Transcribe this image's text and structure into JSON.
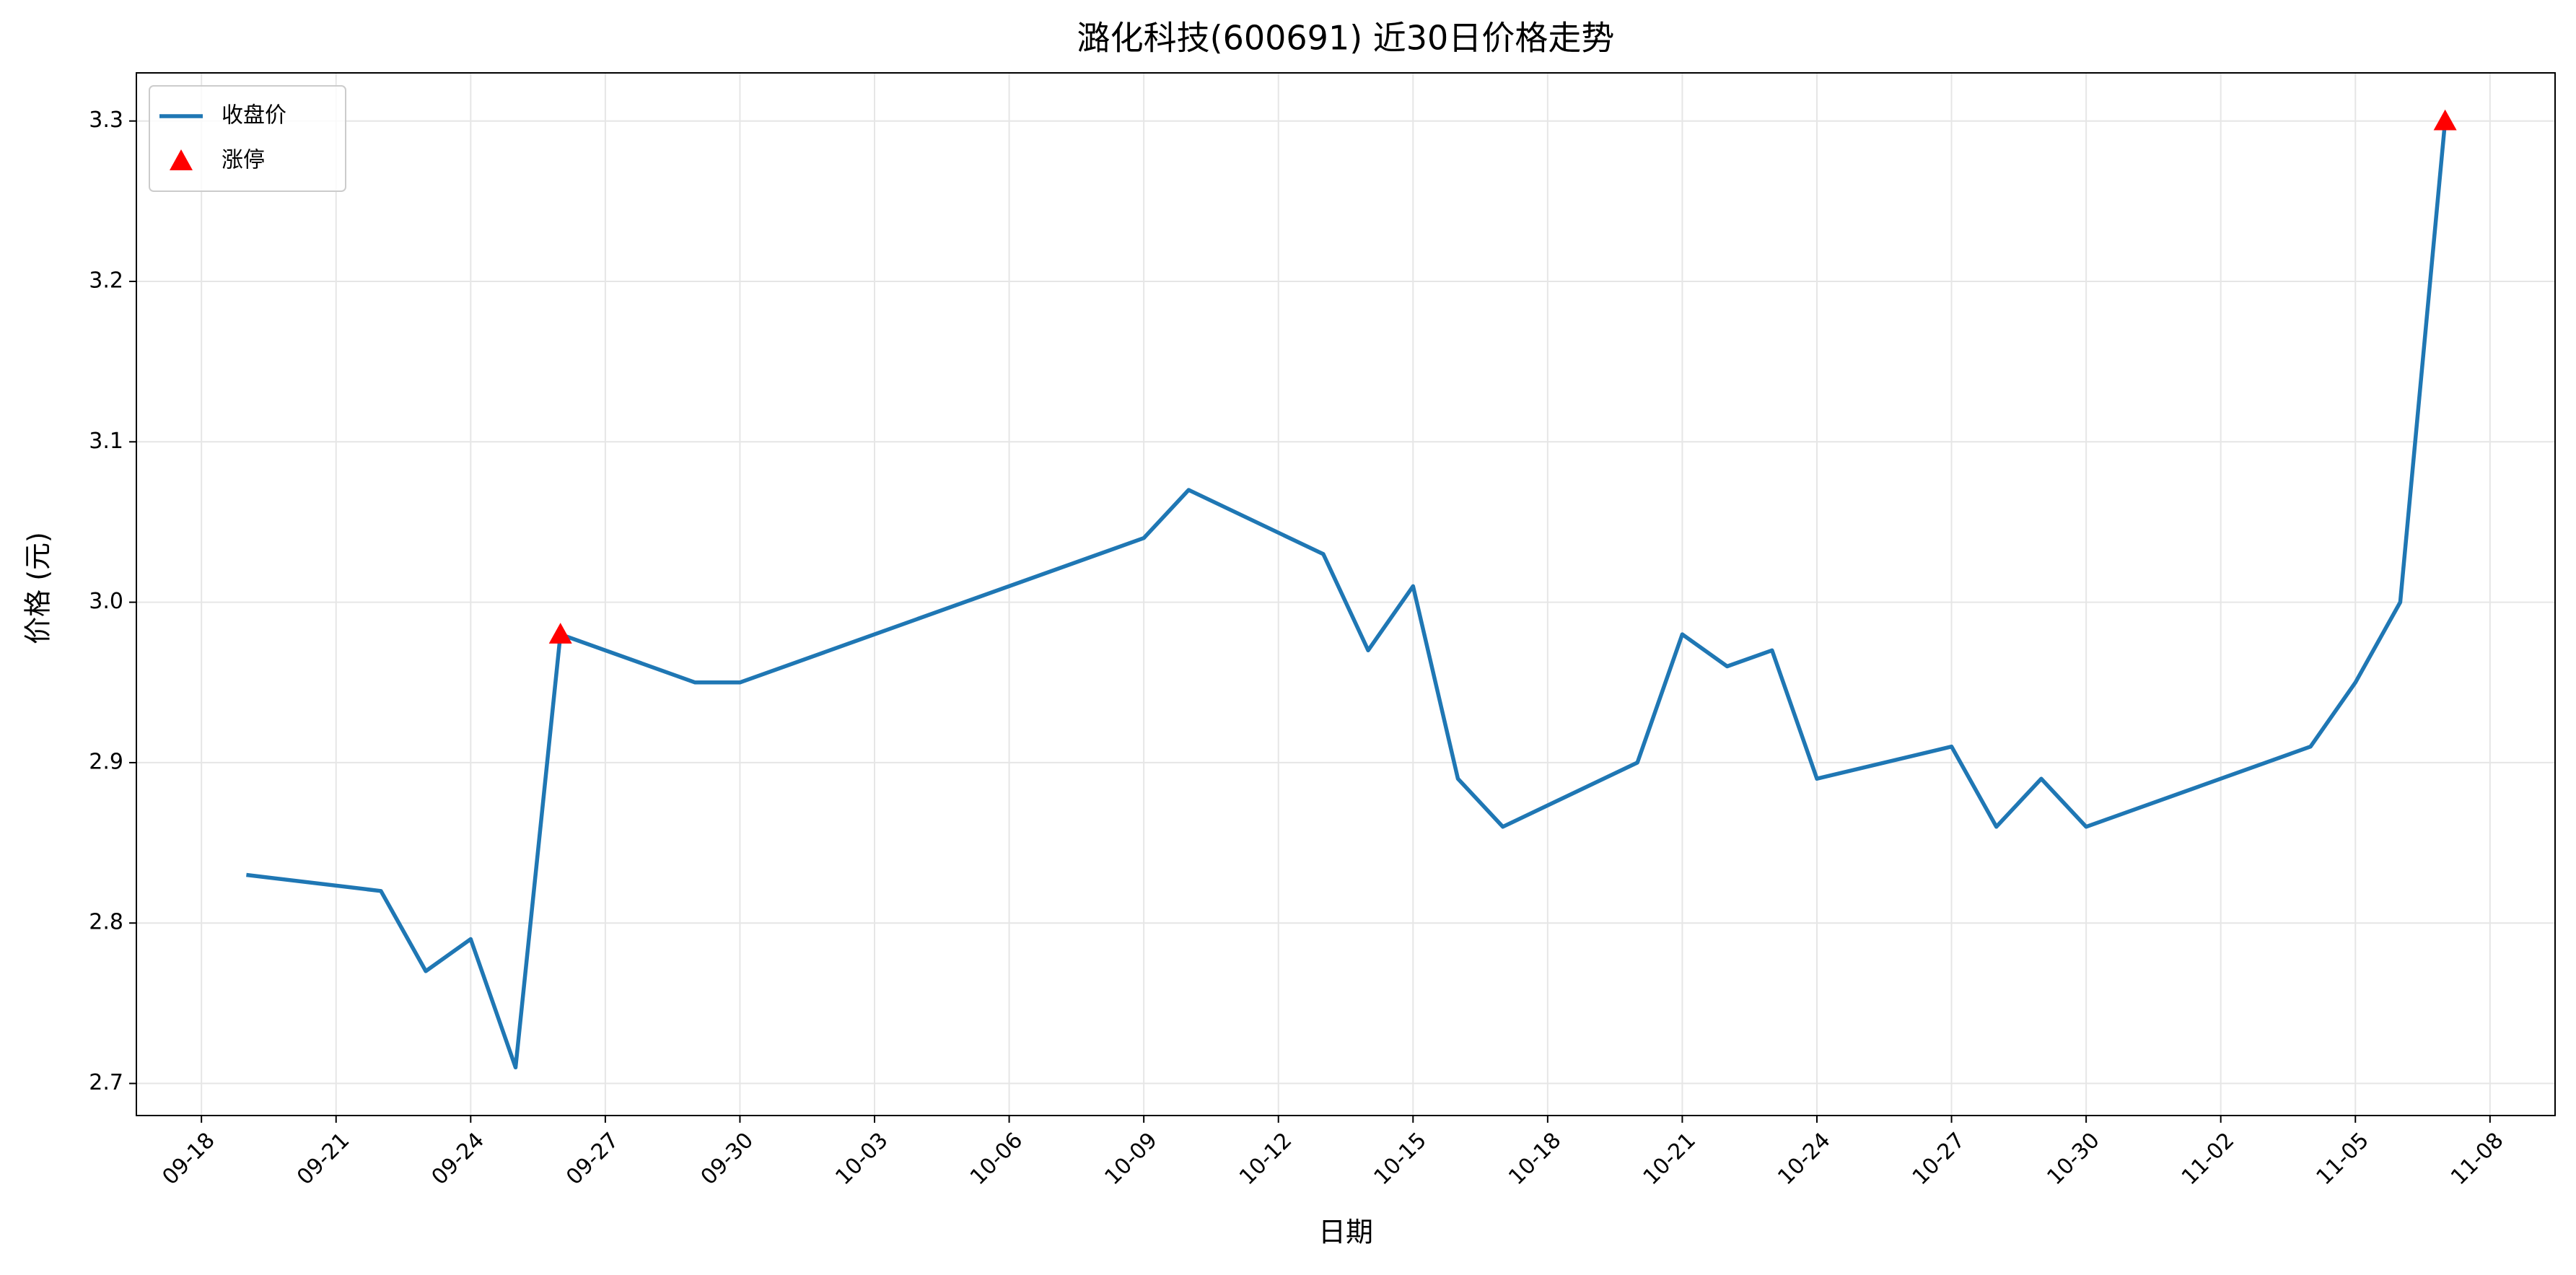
{
  "chart_data": {
    "type": "line",
    "title": "潞化科技(600691) 近30日价格走势",
    "xlabel": "日期",
    "ylabel": "价格 (元)",
    "series": [
      {
        "name": "收盘价",
        "type": "line",
        "color": "#1f77b4",
        "x": [
          "09-19",
          "09-22",
          "09-23",
          "09-24",
          "09-25",
          "09-26",
          "09-29",
          "09-30",
          "10-09",
          "10-10",
          "10-13",
          "10-14",
          "10-15",
          "10-16",
          "10-17",
          "10-20",
          "10-21",
          "10-22",
          "10-23",
          "10-24",
          "10-27",
          "10-28",
          "10-29",
          "10-30",
          "11-04",
          "11-05",
          "11-06",
          "11-07"
        ],
        "values": [
          2.83,
          2.82,
          2.77,
          2.79,
          2.71,
          2.98,
          2.95,
          2.95,
          3.04,
          3.07,
          3.03,
          2.97,
          3.01,
          2.89,
          2.86,
          2.9,
          2.98,
          2.96,
          2.97,
          2.89,
          2.91,
          2.86,
          2.89,
          2.86,
          2.91,
          2.95,
          3.0,
          3.3
        ]
      },
      {
        "name": "涨停",
        "type": "scatter",
        "marker": "triangle",
        "color": "#ff0000",
        "x": [
          "09-26",
          "11-07"
        ],
        "values": [
          2.98,
          3.3
        ]
      }
    ],
    "xlim": [
      "09-19",
      "11-07"
    ],
    "xticks": [
      "09-18",
      "09-21",
      "09-24",
      "09-27",
      "09-30",
      "10-03",
      "10-06",
      "10-09",
      "10-12",
      "10-15",
      "10-18",
      "10-21",
      "10-24",
      "10-27",
      "10-30",
      "11-02",
      "11-05",
      "11-08"
    ],
    "ylim": [
      2.68,
      3.33
    ],
    "yticks": [
      2.7,
      2.8,
      2.9,
      {
        "value": 3,
        "label": "3.0"
      },
      3.1,
      3.2,
      3.3
    ],
    "grid": true,
    "legend": "upper left"
  }
}
